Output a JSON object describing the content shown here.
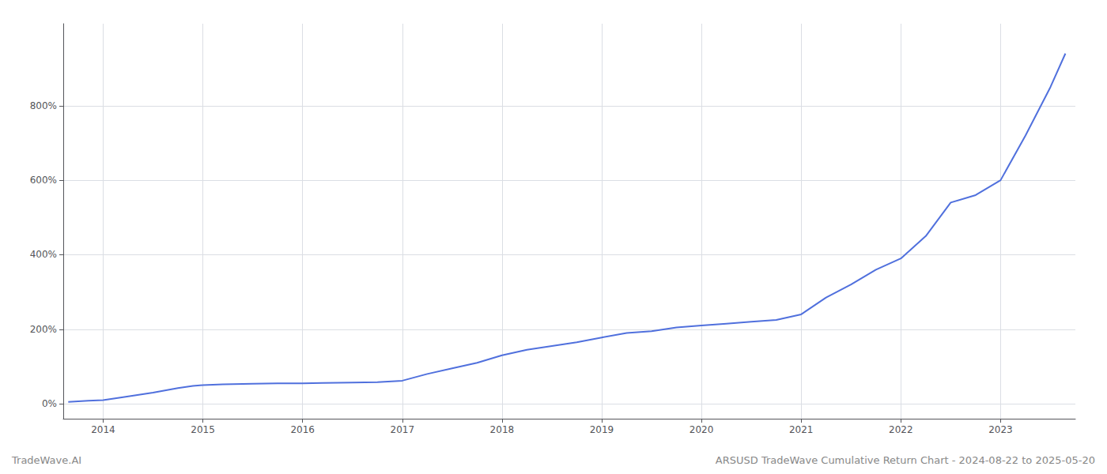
{
  "chart_data": {
    "type": "line",
    "title": "ARSUSD TradeWave Cumulative Return Chart - 2024-08-22 to 2025-05-20",
    "annotations": [
      "TradeWave.AI"
    ],
    "x": [
      2013.65,
      2013.85,
      2014.0,
      2014.2,
      2014.5,
      2014.75,
      2014.9,
      2015.0,
      2015.2,
      2015.5,
      2015.75,
      2016.0,
      2016.2,
      2016.5,
      2016.75,
      2017.0,
      2017.25,
      2017.5,
      2017.75,
      2018.0,
      2018.25,
      2018.5,
      2018.75,
      2019.0,
      2019.25,
      2019.5,
      2019.75,
      2020.0,
      2020.25,
      2020.5,
      2020.75,
      2021.0,
      2021.25,
      2021.5,
      2021.75,
      2022.0,
      2022.25,
      2022.5,
      2022.75,
      2023.0,
      2023.25,
      2023.5,
      2023.65
    ],
    "values": [
      5,
      8,
      10,
      18,
      30,
      42,
      48,
      50,
      52,
      54,
      55,
      55,
      56,
      57,
      58,
      62,
      80,
      95,
      110,
      130,
      145,
      155,
      165,
      178,
      190,
      195,
      205,
      210,
      215,
      220,
      225,
      240,
      285,
      320,
      360,
      390,
      450,
      540,
      560,
      600,
      720,
      850,
      940
    ],
    "xlim": [
      2013.6,
      2023.75
    ],
    "xticks": [
      2014,
      2015,
      2016,
      2017,
      2018,
      2019,
      2020,
      2021,
      2022,
      2023
    ],
    "ylim": [
      -40,
      1020
    ],
    "yticks": [
      {
        "value": 0,
        "label": "0%"
      },
      {
        "value": 200,
        "label": "200%"
      },
      {
        "value": 400,
        "label": "400%"
      },
      {
        "value": 600,
        "label": "600%"
      },
      {
        "value": 800,
        "label": "800%"
      }
    ],
    "grid": true
  }
}
